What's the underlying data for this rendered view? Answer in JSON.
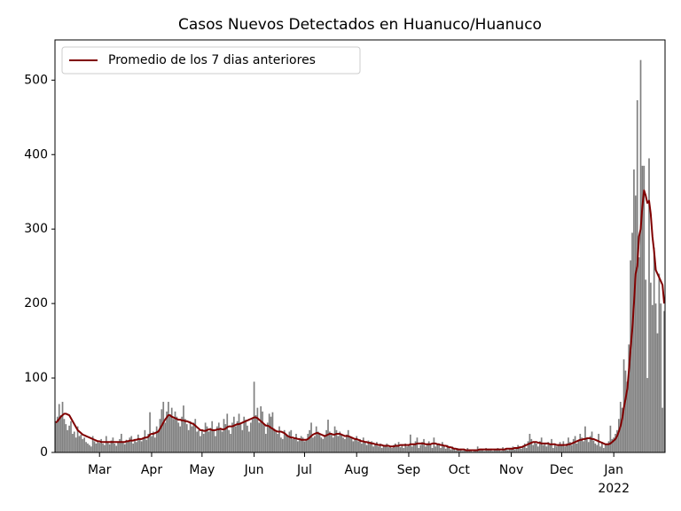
{
  "chart_data": {
    "type": "bar",
    "title": "Casos Nuevos Detectados en Huanuco/Huanuco",
    "series": [
      {
        "name": null,
        "type": "bar",
        "color": "#808080",
        "values": [
          42,
          48,
          65,
          50,
          68,
          45,
          38,
          30,
          36,
          42,
          25,
          28,
          20,
          35,
          22,
          24,
          18,
          20,
          14,
          12,
          10,
          8,
          22,
          15,
          12,
          14,
          13,
          18,
          12,
          10,
          22,
          14,
          11,
          16,
          20,
          12,
          9,
          14,
          18,
          25,
          13,
          11,
          17,
          15,
          20,
          22,
          12,
          16,
          14,
          24,
          18,
          15,
          20,
          30,
          17,
          25,
          54,
          22,
          28,
          20,
          35,
          30,
          45,
          58,
          68,
          40,
          55,
          68,
          50,
          60,
          45,
          55,
          48,
          40,
          35,
          48,
          63,
          45,
          38,
          30,
          42,
          35,
          40,
          45,
          28,
          30,
          22,
          30,
          25,
          40,
          35,
          28,
          33,
          42,
          30,
          22,
          35,
          40,
          32,
          28,
          45,
          38,
          52,
          30,
          25,
          40,
          48,
          35,
          42,
          52,
          38,
          30,
          48,
          44,
          36,
          28,
          40,
          45,
          95,
          50,
          60,
          40,
          62,
          55,
          38,
          25,
          40,
          52,
          48,
          54,
          32,
          28,
          25,
          35,
          20,
          18,
          30,
          25,
          22,
          28,
          30,
          18,
          20,
          25,
          15,
          18,
          22,
          20,
          15,
          18,
          25,
          30,
          40,
          20,
          22,
          35,
          28,
          25,
          20,
          18,
          22,
          30,
          44,
          28,
          25,
          20,
          35,
          30,
          22,
          28,
          25,
          20,
          18,
          24,
          30,
          22,
          20,
          15,
          18,
          22,
          15,
          18,
          12,
          20,
          14,
          10,
          16,
          12,
          15,
          8,
          10,
          14,
          8,
          12,
          6,
          10,
          8,
          12,
          7,
          9,
          6,
          10,
          12,
          8,
          14,
          7,
          10,
          6,
          12,
          8,
          10,
          24,
          8,
          12,
          15,
          20,
          6,
          10,
          14,
          18,
          8,
          12,
          15,
          10,
          6,
          20,
          8,
          12,
          10,
          6,
          14,
          8,
          5,
          10,
          6,
          4,
          8,
          5,
          3,
          6,
          3,
          5,
          2,
          4,
          3,
          6,
          2,
          4,
          1,
          3,
          2,
          8,
          3,
          5,
          4,
          2,
          6,
          3,
          4,
          5,
          2,
          3,
          4,
          6,
          3,
          2,
          7,
          4,
          5,
          3,
          6,
          5,
          8,
          4,
          6,
          10,
          7,
          5,
          9,
          12,
          6,
          15,
          25,
          18,
          10,
          14,
          12,
          8,
          15,
          20,
          10,
          12,
          8,
          14,
          10,
          18,
          6,
          12,
          8,
          10,
          14,
          10,
          15,
          8,
          12,
          20,
          14,
          10,
          18,
          22,
          12,
          16,
          25,
          20,
          15,
          35,
          18,
          14,
          22,
          28,
          16,
          12,
          10,
          25,
          8,
          14,
          6,
          12,
          10,
          15,
          36,
          18,
          20,
          25,
          30,
          45,
          68,
          60,
          125,
          110,
          95,
          145,
          258,
          295,
          380,
          345,
          473,
          262,
          527,
          385,
          385,
          232,
          100,
          395,
          228,
          198,
          275,
          200,
          160,
          240,
          200,
          60,
          190
        ]
      },
      {
        "name": "Promedio de los 7 dias anteriores",
        "type": "line",
        "color": "#800000",
        "values": [
          40,
          42,
          45,
          48,
          50,
          52,
          52,
          51,
          50,
          46,
          42,
          38,
          34,
          30,
          28,
          26,
          24,
          23,
          22,
          21,
          20,
          19,
          18,
          17,
          16,
          15,
          15,
          14,
          14,
          14,
          14,
          14,
          14,
          14,
          14,
          14,
          14,
          14,
          14,
          14,
          14,
          14,
          15,
          15,
          16,
          16,
          16,
          17,
          17,
          18,
          18,
          18,
          19,
          20,
          20,
          21,
          24,
          25,
          25,
          26,
          27,
          28,
          32,
          36,
          40,
          44,
          47,
          50,
          50,
          48,
          47,
          46,
          45,
          44,
          44,
          43,
          43,
          42,
          42,
          41,
          40,
          39,
          38,
          36,
          34,
          32,
          30,
          30,
          29,
          29,
          30,
          31,
          31,
          30,
          30,
          30,
          31,
          31,
          32,
          31,
          31,
          32,
          34,
          35,
          35,
          35,
          36,
          37,
          38,
          38,
          39,
          40,
          41,
          42,
          43,
          44,
          45,
          46,
          47,
          47,
          46,
          44,
          42,
          40,
          38,
          36,
          36,
          35,
          33,
          32,
          30,
          29,
          28,
          28,
          28,
          27,
          26,
          24,
          22,
          21,
          20,
          20,
          19,
          19,
          18,
          18,
          17,
          17,
          17,
          17,
          18,
          20,
          22,
          24,
          25,
          26,
          26,
          25,
          24,
          23,
          22,
          23,
          24,
          25,
          25,
          24,
          24,
          25,
          25,
          25,
          24,
          23,
          22,
          22,
          22,
          21,
          20,
          19,
          18,
          18,
          17,
          16,
          15,
          15,
          14,
          14,
          13,
          13,
          12,
          12,
          11,
          11,
          10,
          10,
          10,
          9,
          9,
          9,
          9,
          8,
          8,
          8,
          9,
          9,
          9,
          10,
          10,
          10,
          10,
          10,
          10,
          11,
          11,
          11,
          11,
          12,
          12,
          12,
          12,
          12,
          11,
          11,
          11,
          11,
          12,
          12,
          12,
          11,
          11,
          10,
          10,
          9,
          9,
          8,
          7,
          7,
          6,
          5,
          5,
          4,
          4,
          4,
          4,
          4,
          3,
          3,
          3,
          3,
          3,
          3,
          3,
          3,
          4,
          4,
          4,
          4,
          4,
          4,
          4,
          4,
          4,
          4,
          4,
          4,
          4,
          4,
          4,
          4,
          5,
          5,
          5,
          5,
          5,
          6,
          6,
          6,
          7,
          7,
          8,
          9,
          10,
          11,
          12,
          13,
          14,
          14,
          14,
          13,
          13,
          12,
          12,
          12,
          12,
          12,
          11,
          11,
          11,
          11,
          10,
          10,
          10,
          10,
          10,
          10,
          10,
          11,
          11,
          12,
          13,
          14,
          15,
          16,
          17,
          17,
          18,
          18,
          19,
          19,
          19,
          18,
          18,
          17,
          16,
          15,
          14,
          13,
          12,
          11,
          11,
          11,
          12,
          14,
          16,
          18,
          22,
          28,
          35,
          45,
          60,
          72,
          85,
          110,
          140,
          165,
          200,
          240,
          250,
          290,
          300,
          330,
          352,
          345,
          335,
          338,
          320,
          290,
          270,
          245,
          240,
          235,
          230,
          225,
          200
        ]
      }
    ],
    "xlim": [
      -0.5,
      362.5
    ],
    "xticks": [
      {
        "value": 26,
        "label": "Mar"
      },
      {
        "value": 57,
        "label": "Apr"
      },
      {
        "value": 87,
        "label": "May"
      },
      {
        "value": 118,
        "label": "Jun"
      },
      {
        "value": 148,
        "label": "Jul"
      },
      {
        "value": 179,
        "label": "Aug"
      },
      {
        "value": 210,
        "label": "Sep"
      },
      {
        "value": 240,
        "label": "Oct"
      },
      {
        "value": 271,
        "label": "Nov"
      },
      {
        "value": 301,
        "label": "Dec"
      },
      {
        "value": 332,
        "label": "Jan"
      }
    ],
    "x_year_label": "2022",
    "ylim": [
      0,
      554
    ],
    "yticks": [
      0,
      100,
      200,
      300,
      400,
      500
    ],
    "legend": "upper left"
  }
}
